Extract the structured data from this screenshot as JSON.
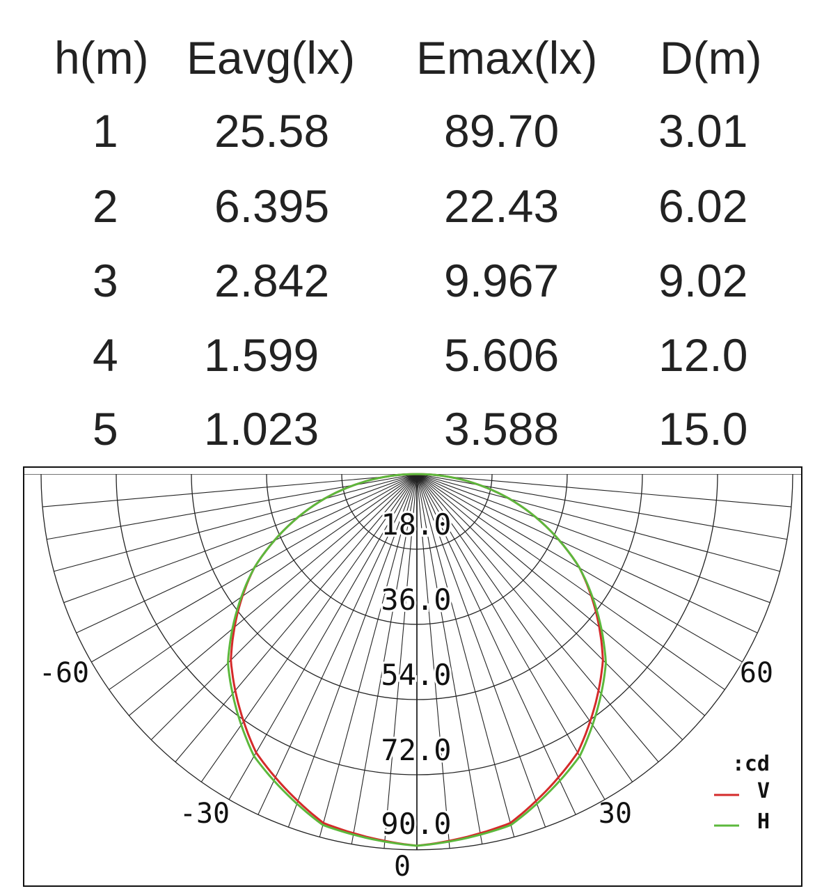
{
  "table": {
    "headers": [
      "h(m)",
      "Eavg(lx)",
      "Emax(lx)",
      "D(m)"
    ],
    "rows": [
      [
        "1",
        "25.58",
        "89.70",
        "3.01"
      ],
      [
        "2",
        "6.395",
        "22.43",
        "6.02"
      ],
      [
        "3",
        "2.842",
        "9.967",
        "9.02"
      ],
      [
        "4",
        "1.599",
        "5.606",
        "12.0"
      ],
      [
        "5",
        "1.023",
        "3.588",
        "15.0"
      ]
    ]
  },
  "chart_data": {
    "type": "polar",
    "unit_label": ":cd",
    "radial_ticks": [
      "18.0",
      "36.0",
      "54.0",
      "72.0",
      "90.0"
    ],
    "radial_max": 90,
    "angle_labels": {
      "bottom": "0",
      "left_lower": "-30",
      "right_lower": "30",
      "left_mid": "-60",
      "right_mid": "60"
    },
    "grid": true,
    "legend_position": "bottom-right",
    "series": [
      {
        "name": "V",
        "color": "#d42a2a",
        "angles": [
          -90,
          -75,
          -60,
          -45,
          -30,
          -15,
          0,
          15,
          30,
          45,
          60,
          75,
          90
        ],
        "values": [
          0,
          23,
          45,
          63,
          77,
          86.5,
          89,
          86.5,
          77,
          63,
          45,
          23,
          0
        ]
      },
      {
        "name": "H",
        "color": "#5cb83c",
        "angles": [
          -90,
          -75,
          -60,
          -45,
          -30,
          -15,
          0,
          15,
          30,
          45,
          60,
          75,
          90
        ],
        "values": [
          0,
          23,
          45,
          64,
          78,
          87,
          89,
          87,
          78,
          64,
          45,
          23,
          0
        ]
      }
    ]
  }
}
